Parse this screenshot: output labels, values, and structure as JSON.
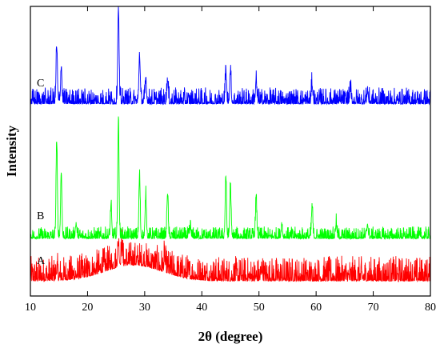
{
  "chart_data": {
    "type": "line",
    "xlabel": "2θ (degree)",
    "ylabel": "Intensity",
    "xlim": [
      10,
      80
    ],
    "xticks": [
      10,
      20,
      30,
      40,
      50,
      60,
      70,
      80
    ],
    "y_ticks_shown": false,
    "grid": false,
    "legend": "none",
    "series": [
      {
        "name": "A",
        "color": "#ff0000",
        "base": 0.6,
        "noise": 1.8,
        "hump": {
          "center": 28,
          "width": 7,
          "height": 1.8
        },
        "peaks": [
          [
            14.6,
            0.8
          ],
          [
            25.4,
            2.5
          ],
          [
            26.0,
            2.0
          ],
          [
            33.5,
            1.2
          ],
          [
            50.5,
            1.0
          ]
        ]
      },
      {
        "name": "B",
        "color": "#00ff00",
        "base": 0.2,
        "noise": 1.1,
        "hump": null,
        "peaks": [
          [
            14.6,
            14.0
          ],
          [
            15.4,
            9.5
          ],
          [
            18.0,
            2.0
          ],
          [
            24.1,
            4.5
          ],
          [
            25.4,
            17.0
          ],
          [
            29.1,
            9.0
          ],
          [
            30.2,
            6.0
          ],
          [
            34.0,
            6.5
          ],
          [
            38.0,
            1.5
          ],
          [
            44.2,
            9.0
          ],
          [
            45.0,
            7.5
          ],
          [
            49.5,
            5.6
          ],
          [
            54.0,
            1.8
          ],
          [
            59.3,
            4.5
          ],
          [
            63.5,
            2.0
          ],
          [
            69.0,
            2.0
          ]
        ]
      },
      {
        "name": "C",
        "color": "#0000ff",
        "base": 0.3,
        "noise": 1.3,
        "hump": null,
        "peaks": [
          [
            14.6,
            7.0
          ],
          [
            15.4,
            4.5
          ],
          [
            25.4,
            12.0
          ],
          [
            29.1,
            6.0
          ],
          [
            30.2,
            3.0
          ],
          [
            34.0,
            2.8
          ],
          [
            44.2,
            3.8
          ],
          [
            45.0,
            4.0
          ],
          [
            49.5,
            2.8
          ],
          [
            59.3,
            2.2
          ],
          [
            66.0,
            1.5
          ],
          [
            69.0,
            1.5
          ]
        ]
      }
    ]
  }
}
